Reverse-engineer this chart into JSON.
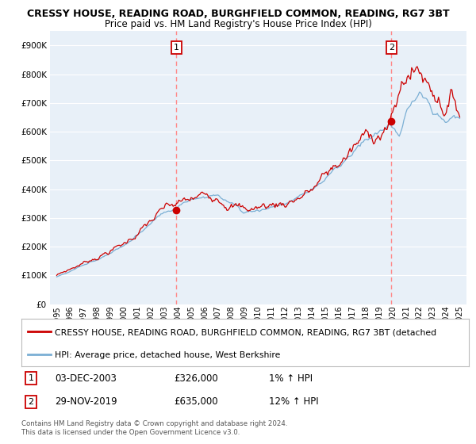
{
  "title": "CRESSY HOUSE, READING ROAD, BURGHFIELD COMMON, READING, RG7 3BT",
  "subtitle": "Price paid vs. HM Land Registry's House Price Index (HPI)",
  "ytick_values": [
    0,
    100000,
    200000,
    300000,
    400000,
    500000,
    600000,
    700000,
    800000,
    900000
  ],
  "ylim": [
    0,
    950000
  ],
  "xlim_start": 1994.5,
  "xlim_end": 2025.5,
  "xticks": [
    1995,
    1996,
    1997,
    1998,
    1999,
    2000,
    2001,
    2002,
    2003,
    2004,
    2005,
    2006,
    2007,
    2008,
    2009,
    2010,
    2011,
    2012,
    2013,
    2014,
    2015,
    2016,
    2017,
    2018,
    2019,
    2020,
    2021,
    2022,
    2023,
    2024,
    2025
  ],
  "sale1_x": 2003.917,
  "sale1_y": 326000,
  "sale1_label": "1",
  "sale1_date": "03-DEC-2003",
  "sale1_price": "£326,000",
  "sale1_hpi": "1% ↑ HPI",
  "sale2_x": 2019.917,
  "sale2_y": 635000,
  "sale2_label": "2",
  "sale2_date": "29-NOV-2019",
  "sale2_price": "£635,000",
  "sale2_hpi": "12% ↑ HPI",
  "line_color_red": "#CC0000",
  "line_color_blue": "#7BAFD4",
  "vline_color": "#FF8888",
  "marker_color": "#CC0000",
  "legend_label_red": "CRESSY HOUSE, READING ROAD, BURGHFIELD COMMON, READING, RG7 3BT (detached",
  "legend_label_blue": "HPI: Average price, detached house, West Berkshire",
  "footer1": "Contains HM Land Registry data © Crown copyright and database right 2024.",
  "footer2": "This data is licensed under the Open Government Licence v3.0.",
  "background_color": "#FFFFFF",
  "chart_bg_color": "#E8F0F8",
  "grid_color": "#FFFFFF"
}
